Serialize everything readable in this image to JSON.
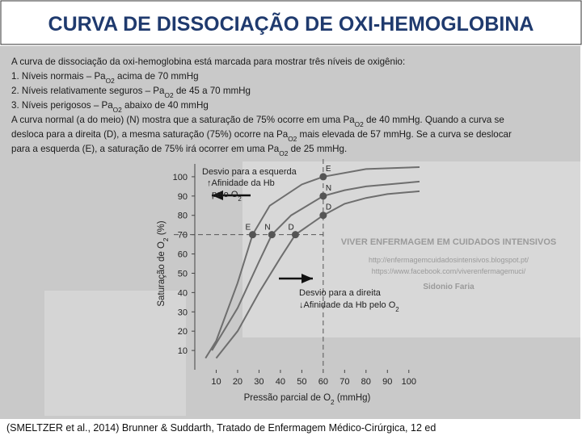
{
  "header": {
    "title": "CURVA DE DISSOCIAÇÃO DE OXI-HEMOGLOBINA"
  },
  "text": [
    [
      "A curva de dissociação da oxi-hemoglobina está marcada para mostrar três níveis de oxigênio:"
    ],
    [
      "1. Níveis normais – Pa",
      "O2",
      " acima de 70 mmHg"
    ],
    [
      "2. Níveis relativamente seguros – Pa",
      "O2",
      " de 45 a 70 mmHg"
    ],
    [
      "3. Níveis perigosos – Pa",
      "O2",
      " abaixo de 40 mmHg"
    ],
    [
      "A curva normal (a do meio) (N) mostra que a saturação de 75% ocorre em uma Pa",
      "O2",
      " de 40 mmHg. Quando a curva se"
    ],
    [
      "desloca para a direita (D), a mesma saturação (75%) ocorre na Pa",
      "O2",
      " mais elevada de 57 mmHg. Se a curva se deslocar"
    ],
    [
      "para a esquerda (E), a saturação de 75% irá ocorrer em uma Pa",
      "O2",
      " de 25 mmHg."
    ]
  ],
  "watermark": [
    "VIVER ENFERMAGEM EM CUIDADOS INTENSIVOS",
    "http://enfermagemcuidadosintensivos.blogspot.pt/",
    "https://www.facebook.com/viverenfermagemuci/",
    "Sidonio Faria"
  ],
  "chart_data": {
    "type": "line",
    "xlabel": [
      "Pressão parcial de O",
      "2",
      " (mmHg)"
    ],
    "ylabel": [
      "Saturação de O",
      "2",
      " (%)"
    ],
    "xlim": [
      0,
      105
    ],
    "ylim": [
      0,
      110
    ],
    "xticks": [
      10,
      20,
      30,
      40,
      50,
      60,
      70,
      80,
      90,
      100
    ],
    "yticks": [
      10,
      20,
      30,
      40,
      50,
      60,
      70,
      80,
      90,
      100
    ],
    "hline": 70,
    "vline": 60,
    "series": [
      {
        "color": "#6e6e6e",
        "x": [
          5,
          10,
          20,
          27,
          35,
          50,
          60,
          80,
          105
        ],
        "values": [
          6,
          15,
          45,
          70,
          85,
          96,
          100,
          104,
          105
        ]
      },
      {
        "color": "#6e6e6e",
        "x": [
          8,
          20,
          30,
          36,
          45,
          60,
          70,
          80,
          100,
          105
        ],
        "values": [
          10,
          32,
          56,
          70,
          80,
          90,
          93,
          95,
          97,
          97.5
        ]
      },
      {
        "color": "#6e6e6e",
        "x": [
          10,
          20,
          30,
          40,
          47,
          60,
          70,
          80,
          90,
          100,
          105
        ],
        "values": [
          6,
          20,
          40,
          58,
          70,
          80,
          86,
          89,
          91,
          92,
          92.5
        ]
      }
    ],
    "markers": [
      {
        "label": "E",
        "x": 27,
        "y": 70
      },
      {
        "label": "N",
        "x": 36,
        "y": 70
      },
      {
        "label": "D",
        "x": 47,
        "y": 70
      },
      {
        "label": "E",
        "x": 60,
        "y": 100
      },
      {
        "label": "N",
        "x": 60,
        "y": 90
      },
      {
        "label": "D",
        "x": 60,
        "y": 80
      }
    ],
    "annotations": [
      [
        "Desvio para a esquerda"
      ],
      [
        "↑Afinidade da Hb"
      ],
      [
        "pelo O",
        "2"
      ],
      [
        "Desvio para a direita"
      ],
      [
        "↓Afinidade da Hb pelo O",
        "2"
      ]
    ]
  },
  "footer": "(SMELTZER et al., 2014) Brunner & Suddarth, Tratado de Enfermagem Médico-Cirúrgica, 12 ed"
}
